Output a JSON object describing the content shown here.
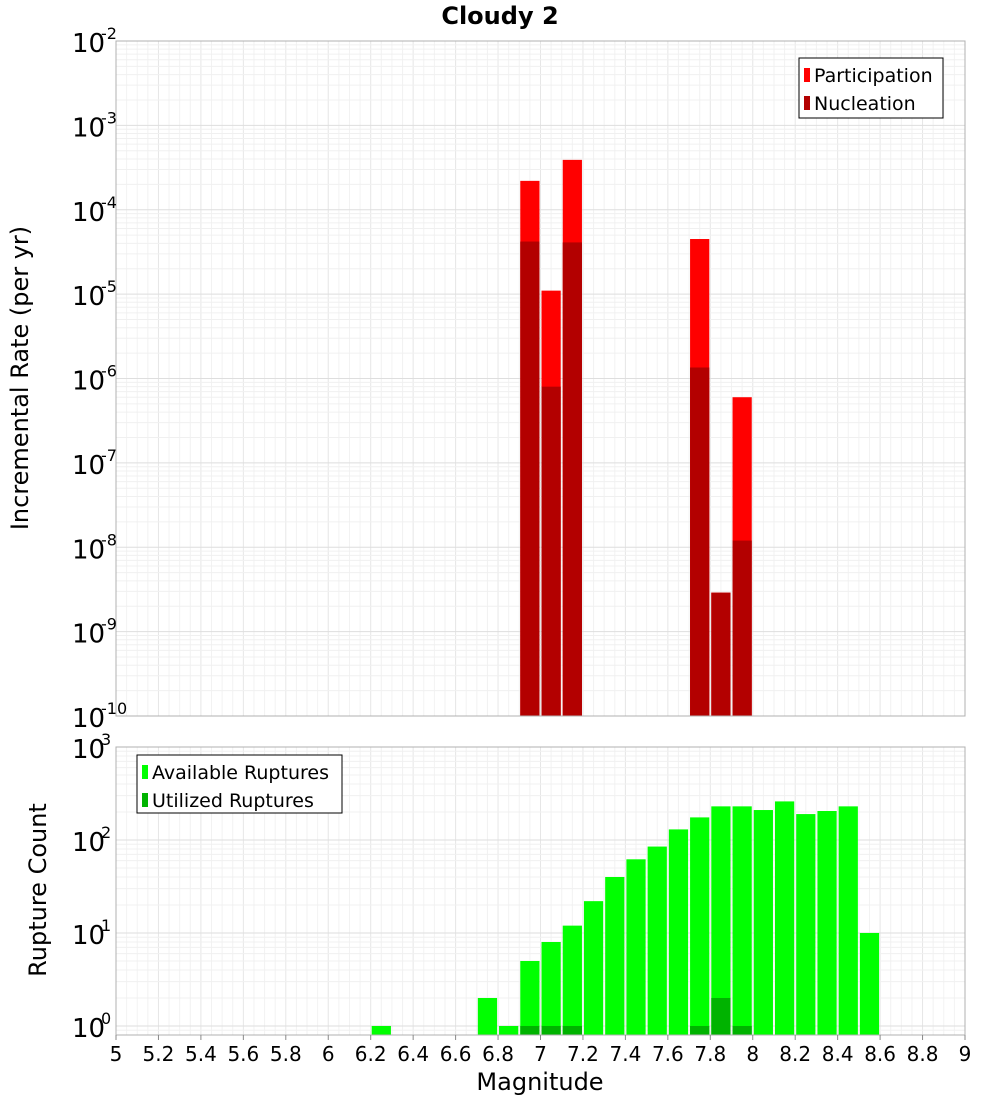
{
  "title": "Cloudy 2",
  "colors": {
    "participation": "#ff0000",
    "nucleation": "#b30000",
    "available": "#00ff00",
    "utilized": "#00b300"
  },
  "chart_data": [
    {
      "type": "bar",
      "scale": "log",
      "xlabel": "Magnitude",
      "ylabel": "Incremental Rate (per yr)",
      "xlim": [
        5,
        9
      ],
      "ylim": [
        1e-10,
        0.01
      ],
      "y_ticks": [
        {
          "base": "10",
          "exp": "-10"
        },
        {
          "base": "10",
          "exp": "-9"
        },
        {
          "base": "10",
          "exp": "-8"
        },
        {
          "base": "10",
          "exp": "-7"
        },
        {
          "base": "10",
          "exp": "-6"
        },
        {
          "base": "10",
          "exp": "-5"
        },
        {
          "base": "10",
          "exp": "-4"
        },
        {
          "base": "10",
          "exp": "-3"
        },
        {
          "base": "10",
          "exp": "-2"
        }
      ],
      "legend_position": "top-right",
      "series": [
        {
          "name": "Participation",
          "x": [
            6.95,
            7.05,
            7.15,
            7.75,
            7.85,
            7.95
          ],
          "values": [
            0.00022,
            1.1e-05,
            0.00039,
            4.5e-05,
            2.9e-09,
            6e-07
          ]
        },
        {
          "name": "Nucleation",
          "x": [
            6.95,
            7.05,
            7.15,
            7.75,
            7.85,
            7.95
          ],
          "values": [
            4.2e-05,
            8e-07,
            4.1e-05,
            1.35e-06,
            2.9e-09,
            1.2e-08
          ]
        }
      ]
    },
    {
      "type": "bar",
      "scale": "log",
      "xlabel": "Magnitude",
      "ylabel": "Rupture Count",
      "xlim": [
        5,
        9
      ],
      "ylim": [
        0.8,
        1000
      ],
      "x_ticks": [
        "5",
        "5.2",
        "5.4",
        "5.6",
        "5.8",
        "6",
        "6.2",
        "6.4",
        "6.6",
        "6.8",
        "7",
        "7.2",
        "7.4",
        "7.6",
        "7.8",
        "8",
        "8.2",
        "8.4",
        "8.6",
        "8.8",
        "9"
      ],
      "y_ticks": [
        {
          "base": "10",
          "exp": "0"
        },
        {
          "base": "10",
          "exp": "1"
        },
        {
          "base": "10",
          "exp": "2"
        },
        {
          "base": "10",
          "exp": "3"
        }
      ],
      "legend_position": "top-left",
      "series": [
        {
          "name": "Available Ruptures",
          "x": [
            6.25,
            6.75,
            6.85,
            6.95,
            7.05,
            7.15,
            7.25,
            7.35,
            7.45,
            7.55,
            7.65,
            7.75,
            7.85,
            7.95,
            8.05,
            8.15,
            8.25,
            8.35,
            8.45,
            8.55
          ],
          "values": [
            1,
            2,
            1,
            5,
            8,
            12,
            22,
            40,
            62,
            85,
            130,
            175,
            230,
            230,
            210,
            260,
            190,
            205,
            230,
            10
          ]
        },
        {
          "name": "Utilized Ruptures",
          "x": [
            6.95,
            7.05,
            7.15,
            7.75,
            7.85,
            7.95
          ],
          "values": [
            1,
            1,
            1,
            1,
            2,
            1
          ]
        }
      ]
    }
  ]
}
